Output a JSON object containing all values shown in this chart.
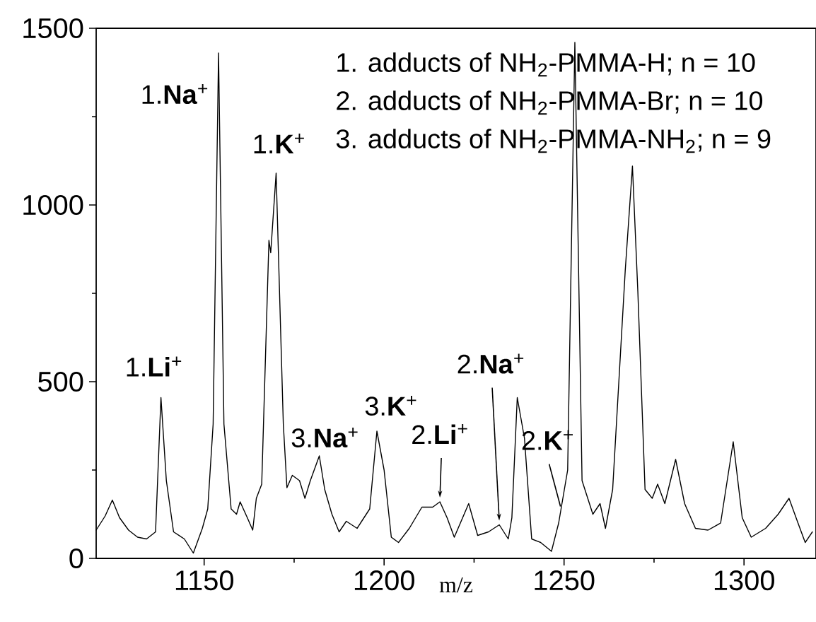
{
  "chart_data": {
    "type": "line",
    "xlabel": "m/z",
    "color": "#000000",
    "xlim": [
      1120,
      1320
    ],
    "ylim": [
      0,
      1500
    ],
    "xticks": [
      1150,
      1200,
      1250,
      1300
    ],
    "yticks": [
      0,
      500,
      1000,
      1500
    ],
    "grid": false,
    "x": [
      1120,
      1122.5,
      1124.5,
      1126.5,
      1129,
      1131.5,
      1134,
      1136.5,
      1138,
      1139.5,
      1141.5,
      1144.5,
      1147,
      1149.5,
      1151,
      1152.5,
      1154,
      1155.5,
      1157.5,
      1159,
      1160,
      1162,
      1163.5,
      1164.5,
      1166,
      1168,
      1168.5,
      1170,
      1172,
      1173,
      1174.5,
      1176.5,
      1178,
      1179.5,
      1182,
      1183.5,
      1185.5,
      1187.5,
      1189.5,
      1192.5,
      1196,
      1198,
      1200,
      1202,
      1204,
      1207,
      1210.5,
      1213.5,
      1215.5,
      1217.5,
      1219.5,
      1223.5,
      1226,
      1229,
      1232,
      1234.5,
      1235.5,
      1237,
      1239,
      1241,
      1243.5,
      1246.5,
      1248.5,
      1251,
      1253,
      1255,
      1258,
      1260,
      1261.5,
      1263.5,
      1267,
      1269,
      1270.5,
      1272.5,
      1274.5,
      1276,
      1278,
      1281,
      1283.5,
      1286.5,
      1290,
      1293.5,
      1297,
      1299.5,
      1302,
      1306,
      1309.5,
      1312.5,
      1315,
      1317,
      1319
    ],
    "values": [
      80,
      120,
      165,
      115,
      80,
      60,
      55,
      75,
      455,
      220,
      75,
      55,
      15,
      85,
      140,
      380,
      1430,
      380,
      140,
      125,
      160,
      115,
      80,
      170,
      210,
      900,
      865,
      1090,
      380,
      200,
      235,
      220,
      170,
      220,
      290,
      195,
      125,
      75,
      105,
      85,
      140,
      360,
      250,
      60,
      45,
      85,
      145,
      145,
      160,
      115,
      60,
      155,
      65,
      75,
      95,
      55,
      115,
      455,
      340,
      55,
      45,
      20,
      100,
      250,
      1460,
      220,
      125,
      155,
      85,
      195,
      815,
      1110,
      755,
      195,
      170,
      210,
      155,
      280,
      155,
      85,
      80,
      100,
      330,
      115,
      60,
      85,
      125,
      170,
      100,
      45,
      75
    ],
    "annotations": [
      "1. adducts of NH$_{2}$-PMMA-H; n = 10",
      "2. adducts of NH$_{2}$-PMMA-Br; n = 10",
      "3. adducts of NH$_{2}$-PMMA-NH$_{2}$; n = 9",
      {
        "text": "1.**Li**$^{+}$",
        "x": 1138,
        "y": 455
      },
      {
        "text": "1.**Na**$^{+}$",
        "x": 1154,
        "y": 1430
      },
      {
        "text": "1.**K**$^{+}$",
        "x": 1170,
        "y": 1090
      },
      {
        "text": "3.**Na**$^{+}$",
        "x": 1182,
        "y": 290
      },
      {
        "text": "3.**K**$^{+}$",
        "x": 1198,
        "y": 360
      },
      {
        "text": "2.**Li**$^{+}$",
        "x": 1215.5,
        "y": 160
      },
      {
        "text": "2.**Na**$^{+}$",
        "x": 1232,
        "y": 95
      },
      {
        "text": "2.**K**$^{+}$",
        "x": 1249,
        "y": 135
      }
    ]
  }
}
